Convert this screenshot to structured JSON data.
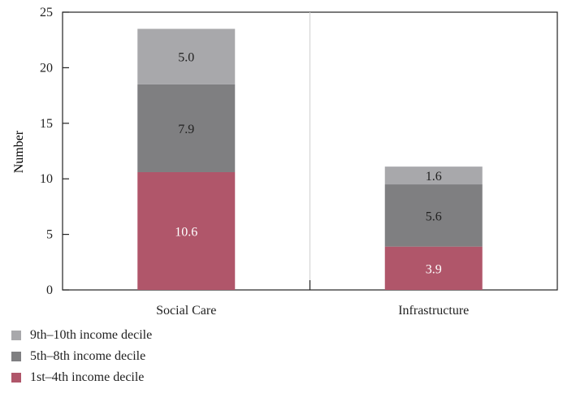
{
  "chart_data": {
    "type": "bar",
    "stacked": true,
    "categories": [
      "Social Care",
      "Infrastructure"
    ],
    "ylabel": "Number",
    "xlabel": "",
    "ylim": [
      0,
      25
    ],
    "yticks": [
      0,
      5,
      10,
      15,
      20,
      25
    ],
    "grid": "vertical separator between categories",
    "legend_position": "bottom-left",
    "series": [
      {
        "name": "1st–4th income decile",
        "values": [
          10.6,
          3.9
        ],
        "labels": [
          "10.6",
          "3.9"
        ],
        "color": "#b0566a",
        "label_color": "#ffffff"
      },
      {
        "name": "5th–8th income decile",
        "values": [
          7.9,
          5.6
        ],
        "labels": [
          "7.9",
          "5.6"
        ],
        "color": "#7f7f81",
        "label_color": "#222222"
      },
      {
        "name": "9th–10th income decile",
        "values": [
          5.0,
          1.6
        ],
        "labels": [
          "5.0",
          "1.6"
        ],
        "color": "#a8a8ab",
        "label_color": "#222222"
      }
    ],
    "legend_order": [
      2,
      1,
      0
    ]
  }
}
